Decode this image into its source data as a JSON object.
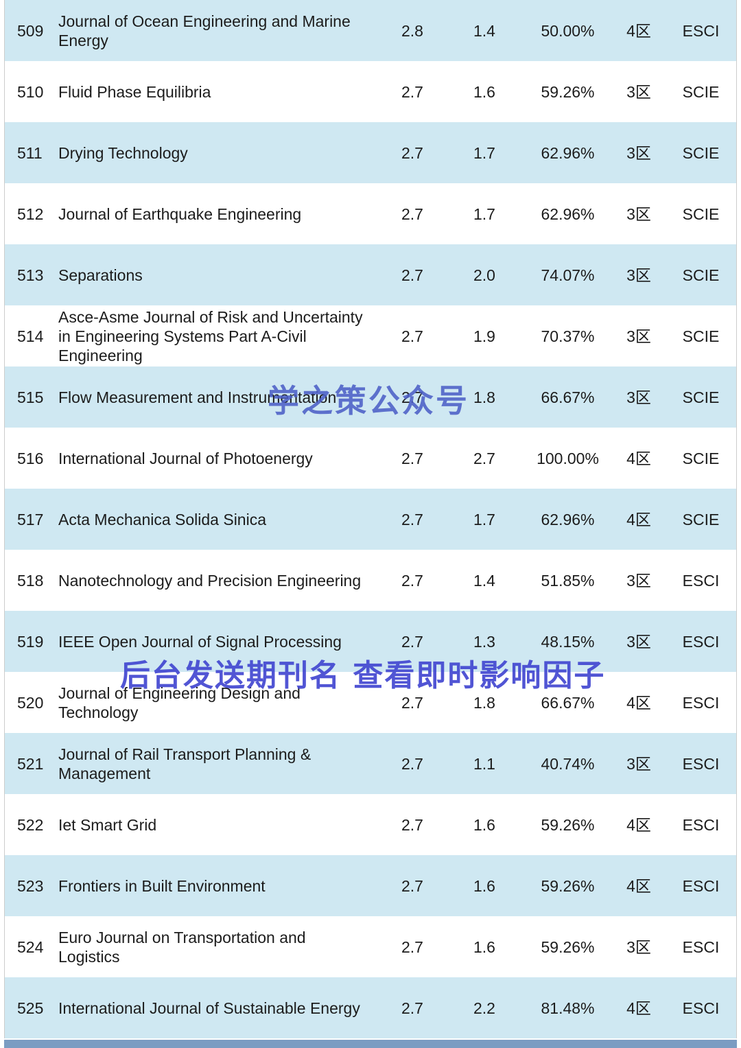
{
  "colors": {
    "row_alt": "#cfe8f2",
    "row_plain": "#ffffff",
    "text": "#1c1c1c",
    "watermark_center": "#4c5ec6",
    "watermark_lower": "#4247d0",
    "bottom_strip": "#7b9cc2"
  },
  "watermarks": {
    "center": "学之策公众号",
    "lower": "后台发送期刊名 查看即时影响因子"
  },
  "table": {
    "rows": [
      {
        "rank": "509",
        "name": "Journal of Ocean Engineering and Marine Energy",
        "v1": "2.8",
        "v2": "1.4",
        "pct": "50.00%",
        "zone": "4区",
        "index": "ESCI"
      },
      {
        "rank": "510",
        "name": "Fluid Phase Equilibria",
        "v1": "2.7",
        "v2": "1.6",
        "pct": "59.26%",
        "zone": "3区",
        "index": "SCIE"
      },
      {
        "rank": "511",
        "name": "Drying Technology",
        "v1": "2.7",
        "v2": "1.7",
        "pct": "62.96%",
        "zone": "3区",
        "index": "SCIE"
      },
      {
        "rank": "512",
        "name": "Journal of Earthquake Engineering",
        "v1": "2.7",
        "v2": "1.7",
        "pct": "62.96%",
        "zone": "3区",
        "index": "SCIE"
      },
      {
        "rank": "513",
        "name": "Separations",
        "v1": "2.7",
        "v2": "2.0",
        "pct": "74.07%",
        "zone": "3区",
        "index": "SCIE"
      },
      {
        "rank": "514",
        "name": "Asce-Asme Journal of Risk and Uncertainty in Engineering Systems Part A-Civil Engineering",
        "v1": "2.7",
        "v2": "1.9",
        "pct": "70.37%",
        "zone": "3区",
        "index": "SCIE"
      },
      {
        "rank": "515",
        "name": "Flow Measurement and Instrumentation",
        "v1": "2.7",
        "v2": "1.8",
        "pct": "66.67%",
        "zone": "3区",
        "index": "SCIE"
      },
      {
        "rank": "516",
        "name": "International Journal of Photoenergy",
        "v1": "2.7",
        "v2": "2.7",
        "pct": "100.00%",
        "zone": "4区",
        "index": "SCIE"
      },
      {
        "rank": "517",
        "name": "Acta Mechanica Solida Sinica",
        "v1": "2.7",
        "v2": "1.7",
        "pct": "62.96%",
        "zone": "4区",
        "index": "SCIE"
      },
      {
        "rank": "518",
        "name": "Nanotechnology and Precision Engineering",
        "v1": "2.7",
        "v2": "1.4",
        "pct": "51.85%",
        "zone": "3区",
        "index": "ESCI"
      },
      {
        "rank": "519",
        "name": "IEEE Open Journal of Signal Processing",
        "v1": "2.7",
        "v2": "1.3",
        "pct": "48.15%",
        "zone": "3区",
        "index": "ESCI"
      },
      {
        "rank": "520",
        "name": "Journal of Engineering Design and Technology",
        "v1": "2.7",
        "v2": "1.8",
        "pct": "66.67%",
        "zone": "4区",
        "index": "ESCI"
      },
      {
        "rank": "521",
        "name": "Journal of Rail Transport Planning & Management",
        "v1": "2.7",
        "v2": "1.1",
        "pct": "40.74%",
        "zone": "3区",
        "index": "ESCI"
      },
      {
        "rank": "522",
        "name": "Iet Smart Grid",
        "v1": "2.7",
        "v2": "1.6",
        "pct": "59.26%",
        "zone": "4区",
        "index": "ESCI"
      },
      {
        "rank": "523",
        "name": "Frontiers in Built Environment",
        "v1": "2.7",
        "v2": "1.6",
        "pct": "59.26%",
        "zone": "4区",
        "index": "ESCI"
      },
      {
        "rank": "524",
        "name": "Euro Journal on Transportation and Logistics",
        "v1": "2.7",
        "v2": "1.6",
        "pct": "59.26%",
        "zone": "3区",
        "index": "ESCI"
      },
      {
        "rank": "525",
        "name": "International Journal of Sustainable Energy",
        "v1": "2.7",
        "v2": "2.2",
        "pct": "81.48%",
        "zone": "4区",
        "index": "ESCI"
      }
    ]
  }
}
